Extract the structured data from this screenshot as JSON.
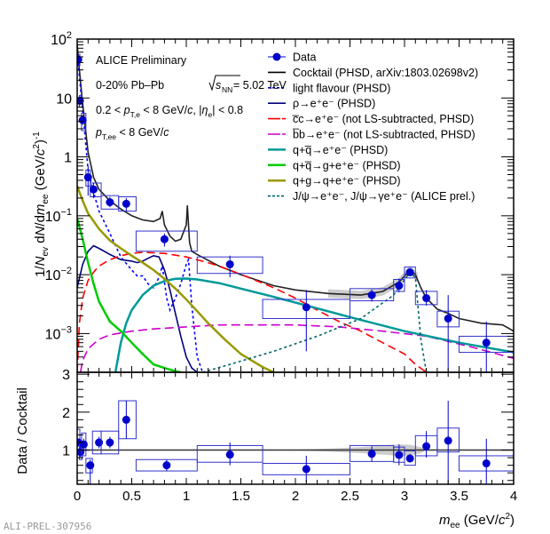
{
  "watermark": "ALI-PREL-307956",
  "annotations": {
    "title": "ALICE Preliminary",
    "system_prefix": "0-20% Pb–Pb ",
    "system_energy": " = 5.02 TeV",
    "cut1": "0.2 < p_T,e < 8 GeV/c, |η_e| < 0.8",
    "cut2": "p_T,ee < 8 GeV/c"
  },
  "chart_data": [
    {
      "panel": "upper",
      "type": "line",
      "xlabel": "m_ee (GeV/c^2)",
      "ylabel": "1/N_ev dN/dm_ee (GeV/c^2)^-1",
      "xlim": [
        0,
        4
      ],
      "ylim": [
        0.00022,
        100
      ],
      "yscale": "log",
      "ytick_labels": [
        "10^2",
        "10",
        "1",
        "10^-1",
        "10^-2",
        "10^-3"
      ],
      "ytick_values": [
        100,
        10,
        1,
        0.1,
        0.01,
        0.001
      ],
      "legend_position": "top-right",
      "legend": [
        {
          "label": "Data",
          "color": "#0000cc",
          "style": "marker"
        },
        {
          "label": "Cocktail (PHSD, arXiv:1803.02698v2)",
          "color": "#000000",
          "style": "solid"
        },
        {
          "label": "light flavour (PHSD)",
          "color": "#0000ff",
          "style": "dotted"
        },
        {
          "label": "ρ→e⁺e⁻ (PHSD)",
          "color": "#000080",
          "style": "solid"
        },
        {
          "label": "c̅c→e⁺e⁻ (not LS-subtracted, PHSD)",
          "color": "#ff0000",
          "style": "dashed"
        },
        {
          "label": "b̅b→e⁺e⁻ (not LS-subtracted, PHSD)",
          "color": "#cc00cc",
          "style": "dashed"
        },
        {
          "label": "q+q̅→e⁺e⁻ (PHSD)",
          "color": "#009999",
          "style": "thick"
        },
        {
          "label": "q+q̅→g+e⁺e⁻ (PHSD)",
          "color": "#00cc00",
          "style": "thick"
        },
        {
          "label": "q+g→q+e⁺e⁻ (PHSD)",
          "color": "#999900",
          "style": "thick"
        },
        {
          "label": "J/ψ→e⁺e⁻, J/ψ→γe⁺e⁻ (ALICE prel.)",
          "color": "#006666",
          "style": "dotted"
        }
      ],
      "data": {
        "x": [
          0.01,
          0.025,
          0.05,
          0.1,
          0.15,
          0.3,
          0.45,
          0.8,
          1.4,
          2.1,
          2.7,
          2.95,
          3.05,
          3.2,
          3.4,
          3.75
        ],
        "y": [
          45,
          9,
          4.2,
          0.45,
          0.28,
          0.17,
          0.16,
          0.04,
          0.015,
          0.0028,
          0.0045,
          0.0065,
          0.011,
          0.004,
          0.0018,
          0.0007
        ],
        "xlo": [
          0.0,
          0.02,
          0.04,
          0.08,
          0.12,
          0.22,
          0.38,
          0.54,
          1.1,
          1.7,
          2.5,
          2.9,
          3.0,
          3.1,
          3.3,
          3.5
        ],
        "xhi": [
          0.02,
          0.04,
          0.08,
          0.12,
          0.22,
          0.38,
          0.54,
          1.1,
          1.7,
          2.5,
          2.9,
          3.0,
          3.1,
          3.3,
          3.5,
          4.0
        ],
        "syslo": [
          35,
          7,
          2.8,
          0.32,
          0.21,
          0.13,
          0.12,
          0.025,
          0.0105,
          0.0018,
          0.0036,
          0.0052,
          0.0088,
          0.0031,
          0.0013,
          0.00048
        ],
        "syshi": [
          55,
          11,
          5.5,
          0.6,
          0.36,
          0.22,
          0.21,
          0.055,
          0.02,
          0.0038,
          0.0058,
          0.0083,
          0.0135,
          0.0052,
          0.0024,
          0.0009
        ],
        "statlo": [
          38,
          7.5,
          3.5,
          0.22,
          0.2,
          0.14,
          0.12,
          0.03,
          0.009,
          0.0005,
          0.0035,
          0.005,
          0.0095,
          0.003,
          0.00022,
          0.00022
        ],
        "stathi": [
          52,
          10.5,
          5.0,
          0.7,
          0.36,
          0.21,
          0.2,
          0.05,
          0.021,
          0.0055,
          0.0056,
          0.0085,
          0.0128,
          0.0055,
          0.0045,
          0.0016
        ]
      },
      "series": [
        {
          "name": "Cocktail",
          "color": "#222222",
          "x": [
            0.0,
            0.02,
            0.05,
            0.1,
            0.15,
            0.2,
            0.3,
            0.4,
            0.5,
            0.6,
            0.7,
            0.76,
            0.78,
            0.8,
            0.85,
            0.9,
            0.95,
            1.0,
            1.01,
            1.02,
            1.03,
            1.05,
            1.1,
            1.3,
            1.5,
            1.8,
            2.0,
            2.3,
            2.6,
            2.8,
            2.95,
            3.05,
            3.1,
            3.15,
            3.2,
            3.3,
            3.4,
            3.5,
            3.7,
            3.9,
            4.0
          ],
          "y": [
            80,
            30,
            8,
            1.2,
            0.45,
            0.28,
            0.18,
            0.13,
            0.1,
            0.085,
            0.08,
            0.09,
            0.12,
            0.07,
            0.045,
            0.037,
            0.04,
            0.07,
            0.15,
            0.07,
            0.035,
            0.025,
            0.022,
            0.014,
            0.01,
            0.0065,
            0.0055,
            0.0048,
            0.0045,
            0.0052,
            0.0075,
            0.012,
            0.01,
            0.006,
            0.004,
            0.0026,
            0.0022,
            0.0018,
            0.0015,
            0.0014,
            0.0011
          ]
        },
        {
          "name": "light flavour",
          "color": "#0000ff",
          "dash": "3,3",
          "x": [
            0.0,
            0.03,
            0.06,
            0.1,
            0.15,
            0.2,
            0.3,
            0.4,
            0.5,
            0.55,
            0.6,
            0.65,
            0.7,
            0.75,
            0.78,
            0.82,
            0.85,
            0.9,
            0.95,
            1.0,
            1.02,
            1.05,
            1.1,
            1.15
          ],
          "y": [
            60,
            15,
            4,
            0.6,
            0.25,
            0.12,
            0.05,
            0.02,
            0.012,
            0.0095,
            0.0095,
            0.007,
            0.006,
            0.009,
            0.014,
            0.004,
            0.0025,
            0.004,
            0.007,
            0.015,
            0.018,
            0.003,
            0.0004,
            0.00022
          ]
        },
        {
          "name": "rho",
          "color": "#000080",
          "x": [
            0.0,
            0.05,
            0.1,
            0.15,
            0.2,
            0.3,
            0.4,
            0.5,
            0.55,
            0.6,
            0.65,
            0.7,
            0.75,
            0.8,
            0.85,
            0.9,
            0.95,
            1.0,
            1.05,
            1.1
          ],
          "y": [
            0.006,
            0.015,
            0.025,
            0.031,
            0.028,
            0.022,
            0.018,
            0.017,
            0.016,
            0.017,
            0.019,
            0.021,
            0.02,
            0.012,
            0.0055,
            0.0022,
            0.0009,
            0.0004,
            0.00026,
            0.00022
          ]
        },
        {
          "name": "ccbar",
          "color": "#ff0000",
          "dash": "9,5",
          "x": [
            0.0,
            0.02,
            0.05,
            0.1,
            0.15,
            0.2,
            0.3,
            0.4,
            0.5,
            0.6,
            0.8,
            1.0,
            1.2,
            1.4,
            1.6,
            1.8,
            2.0,
            2.2,
            2.4,
            2.6,
            2.8,
            3.0,
            3.1,
            3.2
          ],
          "y": [
            0.00022,
            0.0015,
            0.004,
            0.008,
            0.011,
            0.014,
            0.018,
            0.021,
            0.023,
            0.024,
            0.023,
            0.02,
            0.016,
            0.012,
            0.0085,
            0.006,
            0.004,
            0.0025,
            0.0016,
            0.0011,
            0.0007,
            0.00045,
            0.0003,
            0.00022
          ]
        },
        {
          "name": "bbbar",
          "color": "#cc00cc",
          "dash": "10,5",
          "x": [
            0.03,
            0.05,
            0.1,
            0.2,
            0.3,
            0.5,
            0.7,
            1.0,
            1.3,
            1.6,
            2.0,
            2.4,
            2.8,
            3.2,
            3.6,
            4.0
          ],
          "y": [
            0.00022,
            0.00035,
            0.00055,
            0.0008,
            0.00095,
            0.0011,
            0.0012,
            0.0013,
            0.0014,
            0.0014,
            0.0014,
            0.0013,
            0.0011,
            0.0009,
            0.0006,
            0.00038
          ]
        },
        {
          "name": "q+qbar",
          "color": "#009999",
          "width": 2.5,
          "x": [
            0.35,
            0.4,
            0.45,
            0.5,
            0.6,
            0.7,
            0.8,
            0.9,
            1.0,
            1.1,
            1.3,
            1.5,
            1.8,
            2.1,
            2.5,
            3.0,
            3.5,
            4.0
          ],
          "y": [
            0.00022,
            0.0007,
            0.0015,
            0.0025,
            0.0045,
            0.0065,
            0.0078,
            0.0085,
            0.0086,
            0.0083,
            0.0072,
            0.0058,
            0.0042,
            0.003,
            0.0019,
            0.0011,
            0.0007,
            0.00048
          ]
        },
        {
          "name": "q+qbar->g",
          "color": "#00cc00",
          "width": 2.5,
          "x": [
            0.0,
            0.05,
            0.1,
            0.15,
            0.2,
            0.3,
            0.4,
            0.5,
            0.6,
            0.7,
            0.8,
            0.9,
            0.95
          ],
          "y": [
            0.09,
            0.04,
            0.016,
            0.007,
            0.0035,
            0.0016,
            0.0011,
            0.0007,
            0.00045,
            0.0003,
            0.00026,
            0.00023,
            0.00022
          ]
        },
        {
          "name": "q+g",
          "color": "#999900",
          "width": 2.5,
          "x": [
            0.0,
            0.05,
            0.1,
            0.2,
            0.3,
            0.4,
            0.5,
            0.6,
            0.7,
            0.8,
            0.9,
            1.0,
            1.1,
            1.2,
            1.35,
            1.5,
            1.7,
            1.8
          ],
          "y": [
            0.32,
            0.18,
            0.11,
            0.06,
            0.038,
            0.028,
            0.021,
            0.016,
            0.012,
            0.0085,
            0.0058,
            0.0038,
            0.0024,
            0.0015,
            0.0008,
            0.00045,
            0.00027,
            0.00022
          ]
        },
        {
          "name": "J/psi",
          "color": "#006666",
          "dash": "3,3",
          "x": [
            1.15,
            1.4,
            1.8,
            2.2,
            2.6,
            2.9,
            3.05,
            3.1,
            3.15,
            3.2
          ],
          "y": [
            0.00022,
            0.0003,
            0.0005,
            0.0009,
            0.0018,
            0.0045,
            0.011,
            0.009,
            0.0008,
            0.00022
          ]
        }
      ]
    },
    {
      "panel": "lower",
      "type": "scatter",
      "xlabel": "m_ee (GeV/c^2)",
      "ylabel": "Data / Cocktail",
      "xlim": [
        0,
        4
      ],
      "ylim": [
        0.1,
        3.05
      ],
      "xtick_labels": [
        "0",
        "0.5",
        "1",
        "1.5",
        "2",
        "2.5",
        "3",
        "3.5",
        "4"
      ],
      "xtick_values": [
        0,
        0.5,
        1,
        1.5,
        2,
        2.5,
        3,
        3.5,
        4
      ],
      "ytick_labels": [
        "1",
        "2",
        "3"
      ],
      "ytick_values": [
        1,
        2,
        3
      ],
      "reference_line": 1,
      "data": {
        "x": [
          0.01,
          0.03,
          0.06,
          0.12,
          0.2,
          0.3,
          0.45,
          0.82,
          1.4,
          2.1,
          2.7,
          2.95,
          3.05,
          3.2,
          3.4,
          3.75
        ],
        "y": [
          1.2,
          0.95,
          1.15,
          0.6,
          1.2,
          1.2,
          1.8,
          0.6,
          0.88,
          0.5,
          0.9,
          0.87,
          0.78,
          1.1,
          1.25,
          0.65
        ],
        "xlo": [
          0.0,
          0.02,
          0.04,
          0.08,
          0.14,
          0.22,
          0.38,
          0.54,
          1.1,
          1.7,
          2.5,
          2.9,
          3.0,
          3.1,
          3.3,
          3.5
        ],
        "xhi": [
          0.02,
          0.04,
          0.08,
          0.14,
          0.22,
          0.38,
          0.54,
          1.1,
          1.7,
          2.5,
          2.9,
          3.0,
          3.1,
          3.3,
          3.5,
          4.0
        ],
        "syslo": [
          0.95,
          0.75,
          0.85,
          0.4,
          0.9,
          0.9,
          1.3,
          0.45,
          0.68,
          0.35,
          0.7,
          0.68,
          0.6,
          0.85,
          0.95,
          0.45
        ],
        "syshi": [
          1.55,
          1.15,
          1.45,
          0.78,
          1.5,
          1.5,
          2.3,
          0.75,
          1.12,
          0.65,
          1.12,
          1.08,
          0.98,
          1.38,
          1.58,
          0.85
        ],
        "statlo": [
          1.1,
          0.8,
          1.0,
          0.1,
          1.05,
          1.05,
          1.3,
          0.45,
          0.6,
          0.15,
          0.7,
          0.6,
          0.68,
          0.8,
          0.1,
          0.1
        ],
        "stathi": [
          1.3,
          1.1,
          1.3,
          0.75,
          1.35,
          1.35,
          2.3,
          0.75,
          1.2,
          0.85,
          1.1,
          1.15,
          0.9,
          1.5,
          2.3,
          1.3
        ]
      },
      "band": {
        "x": [
          2.0,
          2.3,
          2.6,
          2.8,
          2.95,
          3.05,
          3.15,
          3.2
        ],
        "lo": [
          0.99,
          0.96,
          0.92,
          0.88,
          0.85,
          0.86,
          0.92,
          1.0
        ],
        "hi": [
          1.01,
          1.04,
          1.08,
          1.12,
          1.15,
          1.14,
          1.08,
          1.0
        ]
      }
    }
  ]
}
